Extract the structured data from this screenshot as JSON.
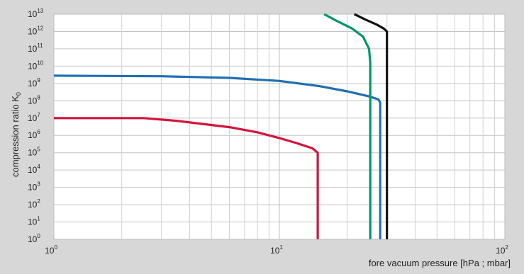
{
  "chart_data": {
    "type": "line",
    "title": "",
    "xlabel": "fore vacuum pressure [hPa ; mbar]",
    "ylabel": "compression ratio K",
    "ylabel_subscript": "0",
    "x_scale": "log",
    "y_scale": "log",
    "xlim": [
      1,
      100
    ],
    "ylim": [
      1,
      10000000000000
    ],
    "grid": true,
    "x_ticks": [
      {
        "value": 1,
        "base": "10",
        "exp": "0"
      },
      {
        "value": 10,
        "base": "10",
        "exp": "1"
      },
      {
        "value": 100,
        "base": "10",
        "exp": "2"
      }
    ],
    "y_ticks": [
      {
        "value": 1,
        "base": "10",
        "exp": "0"
      },
      {
        "value": 10,
        "base": "10",
        "exp": "1"
      },
      {
        "value": 100,
        "base": "10",
        "exp": "2"
      },
      {
        "value": 1000,
        "base": "10",
        "exp": "3"
      },
      {
        "value": 10000,
        "base": "10",
        "exp": "4"
      },
      {
        "value": 100000,
        "base": "10",
        "exp": "5"
      },
      {
        "value": 1000000,
        "base": "10",
        "exp": "6"
      },
      {
        "value": 10000000,
        "base": "10",
        "exp": "7"
      },
      {
        "value": 100000000,
        "base": "10",
        "exp": "8"
      },
      {
        "value": 1000000000,
        "base": "10",
        "exp": "9"
      },
      {
        "value": 10000000000,
        "base": "10",
        "exp": "10"
      },
      {
        "value": 100000000000,
        "base": "10",
        "exp": "11"
      },
      {
        "value": 1000000000000,
        "base": "10",
        "exp": "12"
      },
      {
        "value": 10000000000000,
        "base": "10",
        "exp": "13"
      }
    ],
    "series": [
      {
        "color": "#d4143c",
        "points": [
          [
            1,
            10000000
          ],
          [
            2.5,
            10000000
          ],
          [
            3.5,
            7000000
          ],
          [
            6,
            3000000
          ],
          [
            8,
            1500000
          ],
          [
            10,
            700000
          ],
          [
            12,
            350000
          ],
          [
            14,
            180000
          ],
          [
            14.8,
            100000
          ],
          [
            14.8,
            1
          ]
        ]
      },
      {
        "color": "#1f6fb5",
        "points": [
          [
            1,
            2800000000
          ],
          [
            3,
            2600000000
          ],
          [
            6,
            2100000000
          ],
          [
            10,
            1400000000
          ],
          [
            15,
            700000000
          ],
          [
            20,
            350000000
          ],
          [
            25,
            180000000
          ],
          [
            27.5,
            120000000
          ],
          [
            28,
            80000000
          ],
          [
            28,
            1
          ]
        ]
      },
      {
        "color": "#00966a",
        "points": [
          [
            15.8,
            10000000000000
          ],
          [
            18,
            4000000000000
          ],
          [
            21,
            1500000000000
          ],
          [
            23.5,
            500000000000
          ],
          [
            25,
            100000000000
          ],
          [
            25.3,
            15000000000
          ],
          [
            25.3,
            3000000000
          ],
          [
            25.3,
            1
          ]
        ]
      },
      {
        "color": "#111111",
        "points": [
          [
            21.5,
            10000000000000
          ],
          [
            24,
            5000000000000
          ],
          [
            27,
            2500000000000
          ],
          [
            29,
            1500000000000
          ],
          [
            30,
            1000000000000
          ],
          [
            30,
            1
          ]
        ]
      }
    ]
  }
}
